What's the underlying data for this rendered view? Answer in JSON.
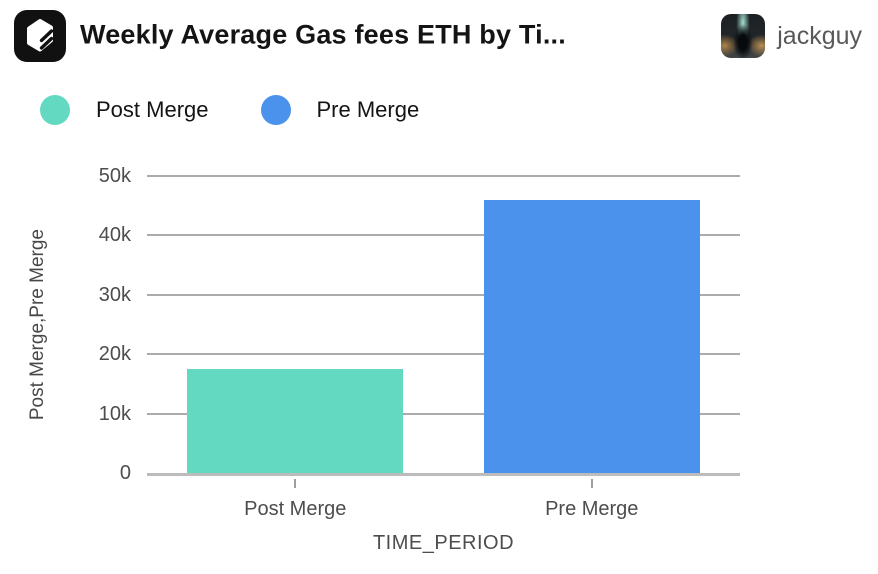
{
  "header": {
    "title": "Weekly Average Gas fees ETH by Ti...",
    "logo": "flipside-logo",
    "user": {
      "name": "jackguy"
    }
  },
  "legend": [
    {
      "label": "Post Merge",
      "color": "#64d9c2"
    },
    {
      "label": "Pre Merge",
      "color": "#4a92ec"
    }
  ],
  "chart_data": {
    "type": "bar",
    "title": "Weekly Average Gas fees ETH by Ti...",
    "categories": [
      "Post Merge",
      "Pre Merge"
    ],
    "values": [
      17500,
      45900
    ],
    "series_colors": [
      "#64d9c2",
      "#4a92ec"
    ],
    "xlabel": "TIME_PERIOD",
    "ylabel": "Post Merge,Pre Merge",
    "ylim": [
      0,
      50000
    ],
    "yticks": [
      0,
      10000,
      20000,
      30000,
      40000,
      50000
    ],
    "ytick_labels": [
      "0",
      "10k",
      "20k",
      "30k",
      "40k",
      "50k"
    ],
    "grid": true,
    "legend_position": "top"
  }
}
